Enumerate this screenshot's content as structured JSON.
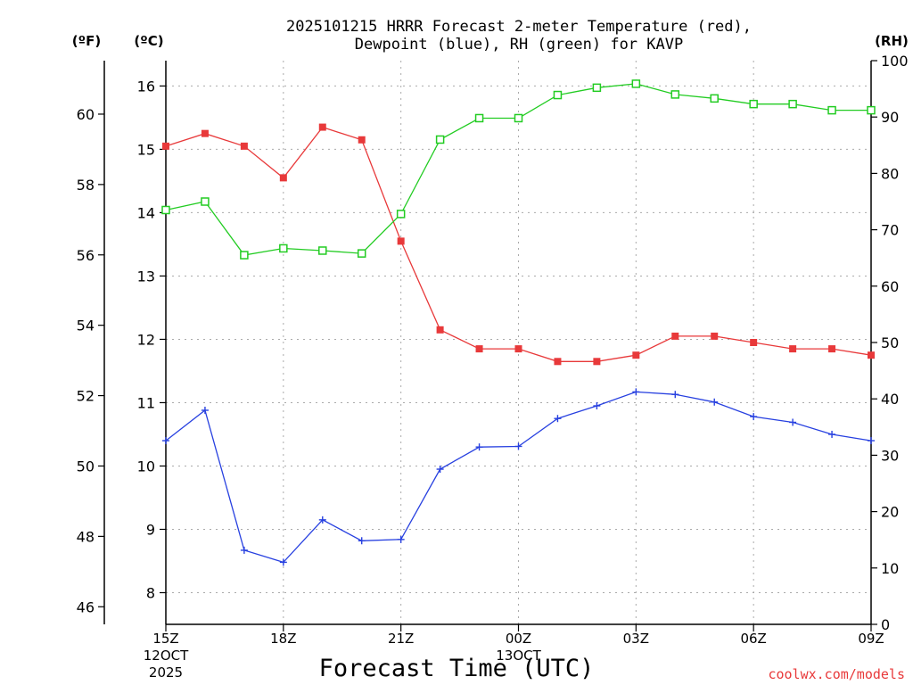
{
  "chart_data": {
    "type": "line",
    "title_line1": "2025101215 HRRR Forecast 2-meter Temperature (red),",
    "title_line2": "Dewpoint (blue), RH (green) for KAVP",
    "xlabel": "Forecast Time (UTC)",
    "y_left_unit_f": "(ºF)",
    "y_left_unit_c": "(ºC)",
    "y_right_unit": "(RH)",
    "credit": "coolwx.com/models",
    "x_hours": [
      0,
      1,
      2,
      3,
      4,
      5,
      6,
      7,
      8,
      9,
      10,
      11,
      12,
      13,
      14,
      15,
      16,
      17,
      18
    ],
    "x_ticks": [
      {
        "hour": 0,
        "label": "15Z",
        "sub1": "12OCT",
        "sub2": "2025"
      },
      {
        "hour": 3,
        "label": "18Z",
        "sub1": "",
        "sub2": ""
      },
      {
        "hour": 6,
        "label": "21Z",
        "sub1": "",
        "sub2": ""
      },
      {
        "hour": 9,
        "label": "00Z",
        "sub1": "13OCT",
        "sub2": ""
      },
      {
        "hour": 12,
        "label": "03Z",
        "sub1": "",
        "sub2": ""
      },
      {
        "hour": 15,
        "label": "06Z",
        "sub1": "",
        "sub2": ""
      },
      {
        "hour": 18,
        "label": "09Z",
        "sub1": "",
        "sub2": ""
      }
    ],
    "y_c_range": [
      7.5,
      16.4
    ],
    "y_c_ticks": [
      8,
      9,
      10,
      11,
      12,
      13,
      14,
      15,
      16
    ],
    "y_f_ticks": [
      46,
      48,
      50,
      52,
      54,
      56,
      58,
      60
    ],
    "y_rh_range": [
      0,
      100
    ],
    "y_rh_ticks": [
      0,
      10,
      20,
      30,
      40,
      50,
      60,
      70,
      80,
      90,
      100
    ],
    "grid": true,
    "series": [
      {
        "name": "Temperature (red)",
        "axis": "celsius",
        "color": "#e8393a",
        "marker": "filled-square",
        "values": [
          15.05,
          15.25,
          15.05,
          14.55,
          15.35,
          15.15,
          13.55,
          12.15,
          11.85,
          11.85,
          11.65,
          11.65,
          11.75,
          12.05,
          12.05,
          11.95,
          11.85,
          11.85,
          11.75
        ]
      },
      {
        "name": "Dewpoint (blue)",
        "axis": "celsius",
        "color": "#2740e0",
        "marker": "plus",
        "values": [
          10.4,
          10.88,
          8.67,
          8.48,
          9.15,
          8.82,
          8.84,
          9.95,
          10.3,
          10.31,
          10.75,
          10.95,
          11.17,
          11.13,
          11.01,
          10.78,
          10.69,
          10.5,
          10.4
        ]
      },
      {
        "name": "RH (green)",
        "axis": "rh",
        "color": "#22cc22",
        "marker": "open-square",
        "values": [
          73.5,
          75.0,
          65.5,
          66.7,
          66.3,
          65.8,
          72.8,
          86.0,
          89.8,
          89.8,
          93.9,
          95.2,
          95.9,
          94.0,
          93.3,
          92.3,
          92.3,
          91.2,
          91.2
        ]
      }
    ]
  }
}
